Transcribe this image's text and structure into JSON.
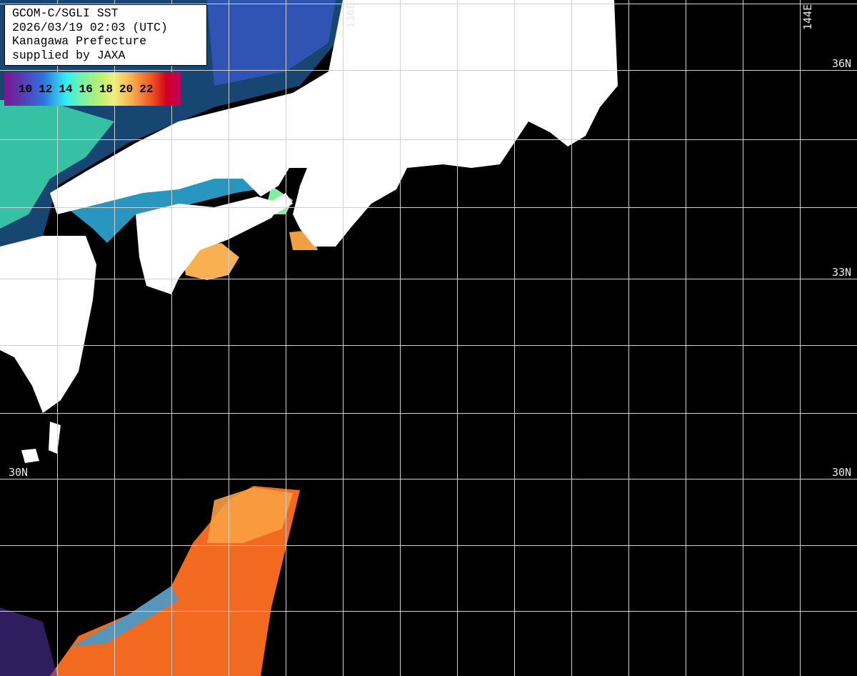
{
  "title_box": {
    "lines": [
      "GCOM-C/SGLI SST",
      "2026/03/19 02:03 (UTC)",
      "Kanagawa Prefecture",
      "supplied by JAXA"
    ]
  },
  "legend": {
    "ticks": [
      "10",
      "12",
      "14",
      "16",
      "18",
      "20",
      "22"
    ],
    "colormap": [
      "#7a1890",
      "#3070e0",
      "#30f0f0",
      "#c0f070",
      "#f0f080",
      "#f8b050",
      "#f05020",
      "#c00060"
    ]
  },
  "grid_labels": {
    "lon": [
      "136E",
      "144E"
    ],
    "lat": [
      "36N",
      "33N",
      "30N",
      "30N"
    ]
  },
  "colors": {
    "land": "#ffffff",
    "no_data": "#000000",
    "grid": "#d0d0d0"
  }
}
